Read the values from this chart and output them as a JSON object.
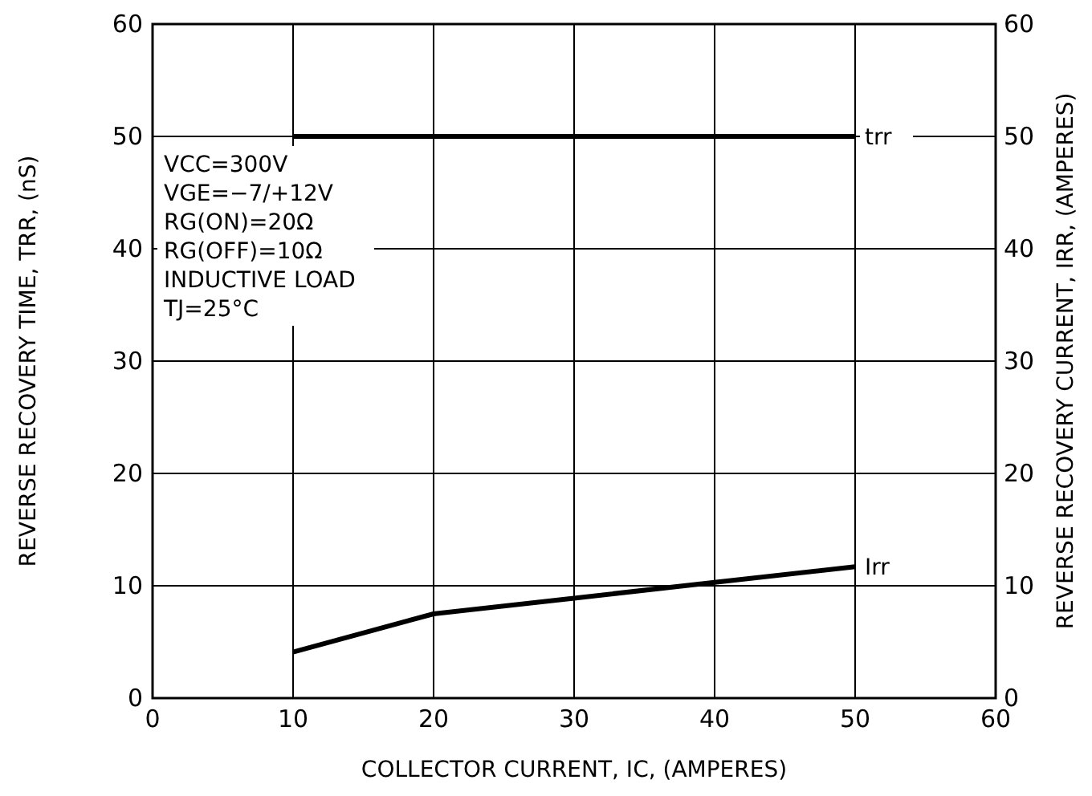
{
  "chart_data": {
    "type": "line",
    "xlabel": "COLLECTOR CURRENT, IC, (AMPERES)",
    "ylabel": "REVERSE RECOVERY TIME, TRR, (nS)",
    "y2label": "REVERSE RECOVERY CURRENT, IRR, (AMPERES)",
    "xlim": [
      0,
      60
    ],
    "xticks": [
      0,
      10,
      20,
      30,
      40,
      50,
      60
    ],
    "ylim": [
      0,
      60
    ],
    "yticks": [
      0,
      10,
      20,
      30,
      40,
      50,
      60
    ],
    "y2lim": [
      0,
      60
    ],
    "y2ticks": [
      0,
      10,
      20,
      30,
      40,
      50,
      60
    ],
    "grid": true,
    "series": [
      {
        "name": "trr",
        "color": "#000000",
        "x": [
          10,
          50
        ],
        "values": [
          50,
          50
        ]
      },
      {
        "name": "Irr",
        "color": "#000000",
        "x": [
          10,
          20,
          30,
          40,
          50
        ],
        "values": [
          4.1,
          7.5,
          8.9,
          10.3,
          11.7
        ]
      }
    ],
    "annotations": [
      "VCC=300V",
      "VGE=−7/+12V",
      "RG(ON)=20Ω",
      "RG(OFF)=10Ω",
      "INDUCTIVE LOAD",
      "TJ=25°C"
    ]
  }
}
